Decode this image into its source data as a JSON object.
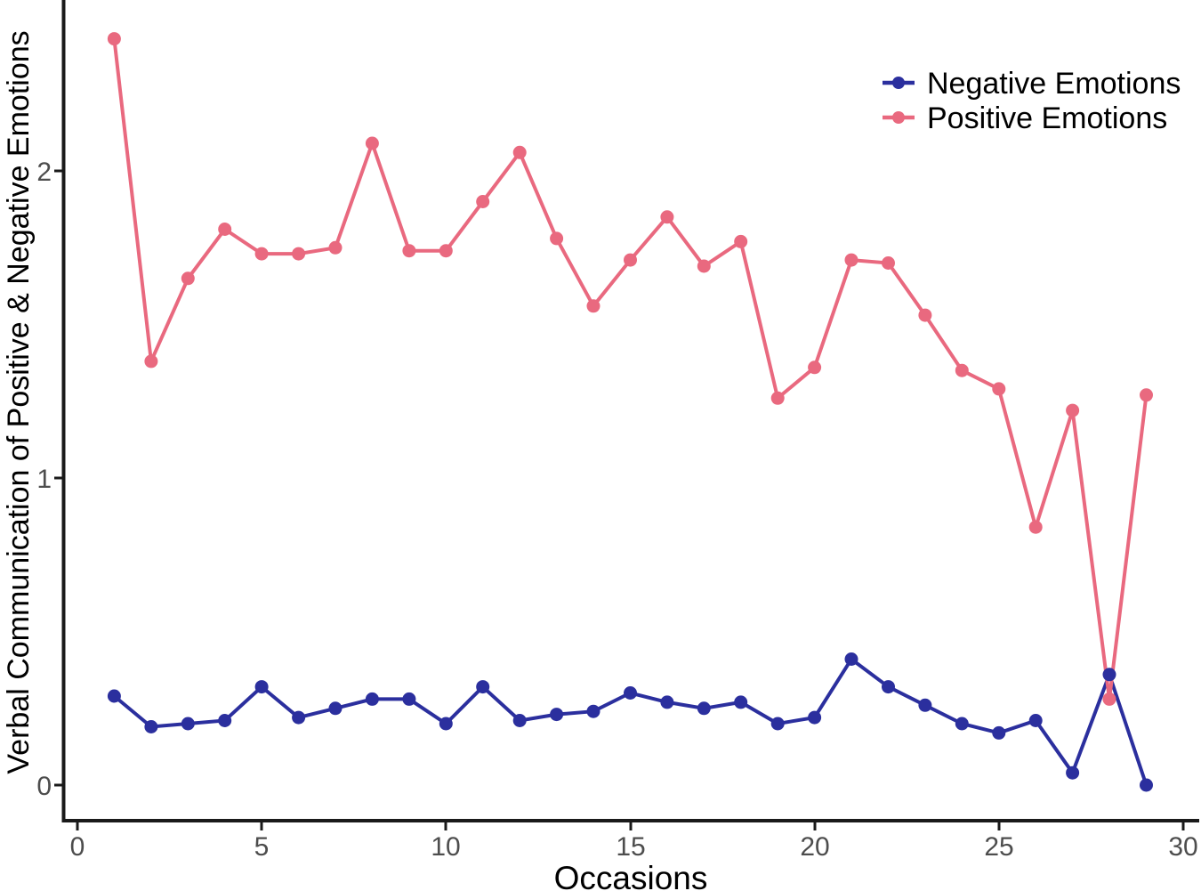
{
  "chart_data": {
    "type": "line",
    "title": "",
    "xlabel": "Occasions",
    "ylabel": "Verbal Communication of Positive & Negative Emotions",
    "x": [
      1,
      2,
      3,
      4,
      5,
      6,
      7,
      8,
      9,
      10,
      11,
      12,
      13,
      14,
      15,
      16,
      17,
      18,
      19,
      20,
      21,
      22,
      23,
      24,
      25,
      26,
      27,
      28,
      29
    ],
    "series": [
      {
        "name": "Negative Emotions",
        "slug": "negative-emotions",
        "color": "#2B2F9E",
        "values": [
          0.29,
          0.19,
          0.2,
          0.21,
          0.32,
          0.22,
          0.25,
          0.28,
          0.28,
          0.2,
          0.32,
          0.21,
          0.23,
          0.24,
          0.3,
          0.27,
          0.25,
          0.27,
          0.2,
          0.22,
          0.41,
          0.32,
          0.26,
          0.2,
          0.17,
          0.21,
          0.04,
          0.36,
          0.0
        ]
      },
      {
        "name": "Positive Emotions",
        "slug": "positive-emotions",
        "color": "#E9697F",
        "values": [
          2.43,
          1.38,
          1.65,
          1.81,
          1.73,
          1.73,
          1.75,
          2.09,
          1.74,
          1.74,
          1.9,
          2.06,
          1.78,
          1.56,
          1.71,
          1.85,
          1.69,
          1.77,
          1.26,
          1.36,
          1.71,
          1.7,
          1.53,
          1.35,
          1.29,
          0.84,
          1.22,
          0.28,
          1.27
        ]
      }
    ],
    "axes": {
      "x": {
        "ticks": [
          0,
          5,
          10,
          15,
          20,
          25,
          30
        ],
        "range": [
          0,
          30.4
        ]
      },
      "y": {
        "ticks": [
          0,
          1,
          2
        ],
        "range": [
          0,
          2.56
        ]
      }
    },
    "legend": {
      "position": "top-right",
      "entries": [
        "Negative Emotions",
        "Positive Emotions"
      ]
    },
    "grid": false,
    "style": {
      "axis_color": "#1a1a1a",
      "tick_label_color": "#4d4d4d",
      "text_color": "#000000",
      "background": "#ffffff"
    }
  }
}
